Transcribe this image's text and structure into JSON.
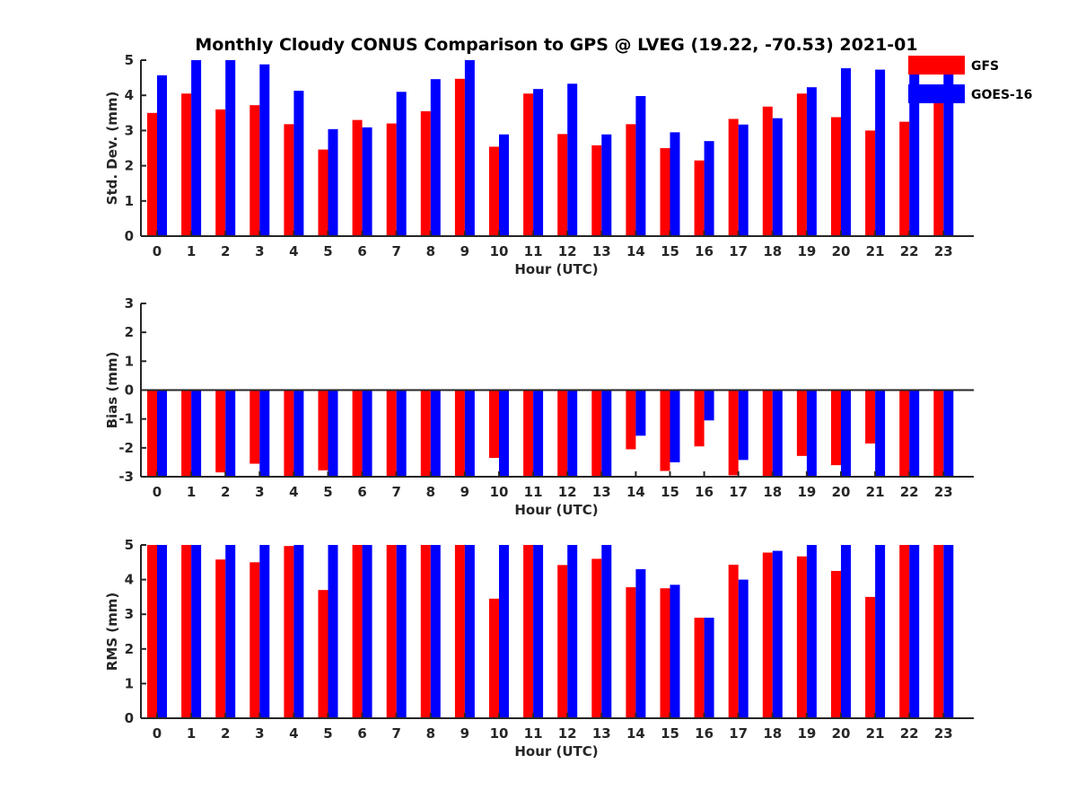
{
  "title": "Monthly Cloudy CONUS Comparison to GPS @ LVEG (19.22, -70.53) 2021-01",
  "colors": {
    "GFS": "#ff0000",
    "GOES-16": "#0000ff"
  },
  "legend": {
    "placement": "top-right",
    "entries": [
      "GFS",
      "GOES-16"
    ]
  },
  "chart_data": [
    {
      "type": "bar",
      "ylabel": "Std. Dev. (mm)",
      "xlabel": "Hour (UTC)",
      "ylim": [
        0,
        5
      ],
      "yticks": [
        0,
        1,
        2,
        3,
        4,
        5
      ],
      "categories": [
        "0",
        "1",
        "2",
        "3",
        "4",
        "5",
        "6",
        "7",
        "8",
        "9",
        "10",
        "11",
        "12",
        "13",
        "14",
        "15",
        "16",
        "17",
        "18",
        "19",
        "20",
        "21",
        "22",
        "23"
      ],
      "series": [
        {
          "name": "GFS",
          "values": [
            3.5,
            4.05,
            3.6,
            3.72,
            3.18,
            2.46,
            3.3,
            3.2,
            3.55,
            4.47,
            2.54,
            4.05,
            2.9,
            2.58,
            3.18,
            2.5,
            2.15,
            3.33,
            3.68,
            4.05,
            3.38,
            3.0,
            3.25,
            3.85
          ]
        },
        {
          "name": "GOES-16",
          "values": [
            4.57,
            5.0,
            5.0,
            4.88,
            4.13,
            3.04,
            3.09,
            4.1,
            4.46,
            5.0,
            2.89,
            4.18,
            4.33,
            2.89,
            3.98,
            2.95,
            2.7,
            3.17,
            3.35,
            4.23,
            4.77,
            4.73,
            4.95,
            4.7
          ]
        }
      ]
    },
    {
      "type": "bar",
      "ylabel": "Bias (mm)",
      "xlabel": "Hour (UTC)",
      "ylim": [
        -3,
        3
      ],
      "yticks": [
        -3,
        -2,
        -1,
        0,
        1,
        2,
        3
      ],
      "categories": [
        "0",
        "1",
        "2",
        "3",
        "4",
        "5",
        "6",
        "7",
        "8",
        "9",
        "10",
        "11",
        "12",
        "13",
        "14",
        "15",
        "16",
        "17",
        "18",
        "19",
        "20",
        "21",
        "22",
        "23"
      ],
      "series": [
        {
          "name": "GFS",
          "values": [
            -3.0,
            -3.0,
            -2.85,
            -2.55,
            -3.0,
            -2.78,
            -3.0,
            -3.0,
            -3.0,
            -3.0,
            -2.35,
            -3.0,
            -3.0,
            -3.0,
            -2.05,
            -2.8,
            -1.95,
            -2.95,
            -3.0,
            -2.28,
            -2.6,
            -1.85,
            -3.0,
            -3.0
          ]
        },
        {
          "name": "GOES-16",
          "values": [
            -3.0,
            -3.0,
            -3.0,
            -3.0,
            -3.0,
            -3.0,
            -3.0,
            -3.0,
            -3.0,
            -3.0,
            -3.0,
            -3.0,
            -3.0,
            -3.0,
            -1.58,
            -2.5,
            -1.05,
            -2.42,
            -3.0,
            -3.0,
            -3.0,
            -3.0,
            -3.0,
            -3.0
          ]
        }
      ]
    },
    {
      "type": "bar",
      "ylabel": "RMS (mm)",
      "xlabel": "Hour (UTC)",
      "ylim": [
        0,
        5
      ],
      "yticks": [
        0,
        1,
        2,
        3,
        4,
        5
      ],
      "categories": [
        "0",
        "1",
        "2",
        "3",
        "4",
        "5",
        "6",
        "7",
        "8",
        "9",
        "10",
        "11",
        "12",
        "13",
        "14",
        "15",
        "16",
        "17",
        "18",
        "19",
        "20",
        "21",
        "22",
        "23"
      ],
      "series": [
        {
          "name": "GFS",
          "values": [
            5.0,
            5.0,
            4.58,
            4.5,
            4.97,
            3.7,
            5.0,
            5.0,
            5.0,
            5.0,
            3.45,
            5.0,
            4.42,
            4.6,
            3.78,
            3.75,
            2.9,
            4.43,
            4.78,
            4.67,
            4.25,
            3.5,
            5.0,
            5.0
          ]
        },
        {
          "name": "GOES-16",
          "values": [
            5.0,
            5.0,
            5.0,
            5.0,
            5.0,
            5.0,
            5.0,
            5.0,
            5.0,
            5.0,
            5.0,
            5.0,
            5.0,
            5.0,
            4.3,
            3.85,
            2.9,
            4.0,
            4.83,
            5.0,
            5.0,
            5.0,
            5.0,
            5.0
          ]
        }
      ]
    }
  ]
}
